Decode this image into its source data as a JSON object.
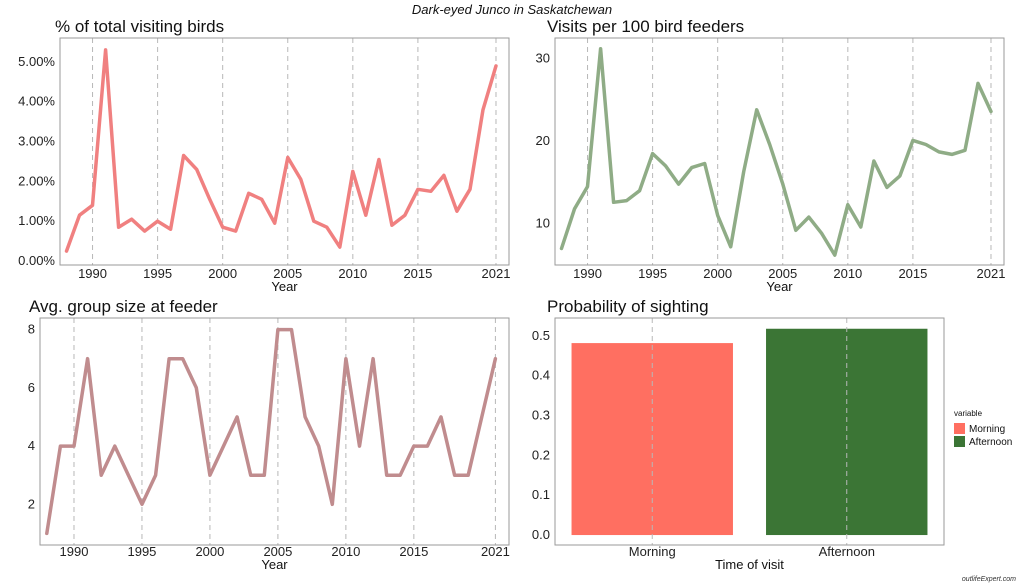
{
  "figure": {
    "title": "Dark-eyed Junco in Saskatchewan",
    "watermark": "outlifeExpert.com"
  },
  "colors": {
    "pct": "#f08080",
    "visits": "#8fac86",
    "group": "#c08c8e",
    "morning": "#ff6f61",
    "afternoon": "#3b7535"
  },
  "chart_data": [
    {
      "type": "line",
      "title": "% of total visiting birds",
      "xlabel": "Year",
      "ylabel": "",
      "x": [
        1988,
        1989,
        1990,
        1991,
        1992,
        1993,
        1994,
        1995,
        1996,
        1997,
        1998,
        1999,
        2000,
        2001,
        2002,
        2003,
        2004,
        2005,
        2006,
        2007,
        2008,
        2009,
        2010,
        2011,
        2012,
        2013,
        2014,
        2015,
        2016,
        2017,
        2018,
        2019,
        2020,
        2021
      ],
      "series": [
        {
          "values": [
            0.25,
            1.15,
            1.4,
            5.3,
            0.85,
            1.05,
            0.75,
            1.0,
            0.8,
            2.65,
            2.3,
            1.55,
            0.85,
            0.75,
            1.7,
            1.55,
            0.95,
            2.6,
            2.05,
            1.0,
            0.85,
            0.35,
            2.25,
            1.15,
            2.55,
            0.9,
            1.15,
            1.8,
            1.75,
            2.15,
            1.25,
            1.8,
            3.8,
            4.9
          ]
        }
      ],
      "xlim": [
        1987.5,
        2022
      ],
      "ylim": [
        -0.1,
        5.6
      ],
      "xticks": [
        1990,
        1995,
        2000,
        2005,
        2010,
        2015,
        2021
      ],
      "yticks": [
        "0.00%",
        "1.00%",
        "2.00%",
        "3.00%",
        "4.00%",
        "5.00%"
      ],
      "yticks_values": [
        0,
        1,
        2,
        3,
        4,
        5
      ],
      "grid": "vertical-dashed"
    },
    {
      "type": "line",
      "title": "Visits per 100 bird feeders",
      "xlabel": "Year",
      "ylabel": "",
      "x": [
        1988,
        1989,
        1990,
        1991,
        1992,
        1993,
        1994,
        1995,
        1996,
        1997,
        1998,
        1999,
        2000,
        2001,
        2002,
        2003,
        2004,
        2005,
        2006,
        2007,
        2008,
        2009,
        2010,
        2011,
        2012,
        2013,
        2014,
        2015,
        2016,
        2017,
        2018,
        2019,
        2020,
        2021
      ],
      "series": [
        {
          "values": [
            7,
            11.8,
            14.5,
            31.2,
            12.6,
            12.8,
            14,
            18.5,
            17,
            14.8,
            16.8,
            17.3,
            11,
            7.2,
            16.3,
            23.8,
            19.6,
            14.8,
            9.2,
            10.8,
            8.8,
            6.2,
            12.3,
            9.6,
            17.6,
            14.4,
            15.8,
            20.1,
            19.6,
            18.7,
            18.4,
            18.9,
            27,
            23.6
          ]
        }
      ],
      "xlim": [
        1987.5,
        2022
      ],
      "ylim": [
        5,
        32.5
      ],
      "xticks": [
        1990,
        1995,
        2000,
        2005,
        2010,
        2015,
        2021
      ],
      "yticks": [
        "10",
        "20",
        "30"
      ],
      "yticks_values": [
        10,
        20,
        30
      ],
      "grid": "vertical-dashed"
    },
    {
      "type": "line",
      "title": "Avg. group size at feeder",
      "xlabel": "Year",
      "ylabel": "",
      "x": [
        1988,
        1989,
        1990,
        1991,
        1992,
        1993,
        1994,
        1995,
        1996,
        1997,
        1998,
        1999,
        2000,
        2001,
        2002,
        2003,
        2004,
        2005,
        2006,
        2007,
        2008,
        2009,
        2010,
        2011,
        2012,
        2013,
        2014,
        2015,
        2016,
        2017,
        2018,
        2019,
        2020,
        2021
      ],
      "series": [
        {
          "values": [
            1,
            4,
            4,
            7,
            3,
            4,
            3,
            2,
            3,
            7,
            7,
            6,
            3,
            4,
            5,
            3,
            3,
            8,
            8,
            5,
            4,
            2,
            7,
            4,
            7,
            3,
            3,
            4,
            4,
            5,
            3,
            3,
            5,
            7
          ]
        }
      ],
      "xlim": [
        1987.5,
        2022
      ],
      "ylim": [
        0.6,
        8.4
      ],
      "xticks": [
        1990,
        1995,
        2000,
        2005,
        2010,
        2015,
        2021
      ],
      "yticks": [
        "2",
        "4",
        "6",
        "8"
      ],
      "yticks_values": [
        2,
        4,
        6,
        8
      ],
      "grid": "vertical-dashed"
    },
    {
      "type": "bar",
      "title": "Probability of sighting",
      "xlabel": "Time of visit",
      "ylabel": "",
      "categories": [
        "Morning",
        "Afternoon"
      ],
      "values": [
        0.482,
        0.518
      ],
      "ylim": [
        -0.025,
        0.545
      ],
      "yticks": [
        "0.0",
        "0.1",
        "0.2",
        "0.3",
        "0.4",
        "0.5"
      ],
      "yticks_values": [
        0,
        0.1,
        0.2,
        0.3,
        0.4,
        0.5
      ],
      "legend": {
        "title": "variable",
        "entries": [
          "Morning",
          "Afternoon"
        ],
        "position": "right"
      },
      "grid": "vertical-dashed"
    }
  ]
}
